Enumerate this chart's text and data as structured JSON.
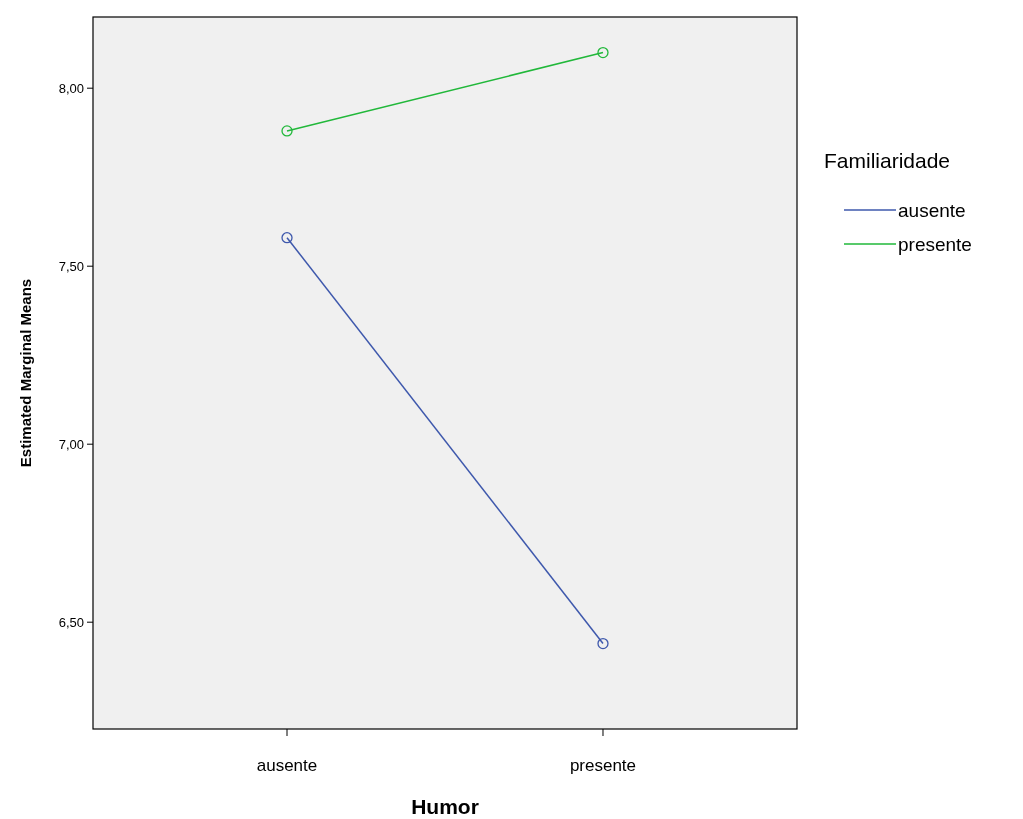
{
  "chart_data": {
    "type": "line",
    "xlabel": "Humor",
    "ylabel": "Estimated Marginal Means",
    "legend_title": "Familiaridade",
    "categories": [
      "ausente",
      "presente"
    ],
    "series": [
      {
        "name": "ausente",
        "color": "#3e58ac",
        "values": [
          7.58,
          6.44
        ]
      },
      {
        "name": "presente",
        "color": "#21b83a",
        "values": [
          7.88,
          8.1
        ]
      }
    ],
    "ylim": [
      6.2,
      8.2
    ],
    "yticks": [
      {
        "value": 6.5,
        "label": "6,50"
      },
      {
        "value": 7,
        "label": "7,00"
      },
      {
        "value": 7.5,
        "label": "7,50"
      },
      {
        "value": 8,
        "label": "8,00"
      }
    ],
    "marker": "circle",
    "legend": "right",
    "grid": false
  }
}
